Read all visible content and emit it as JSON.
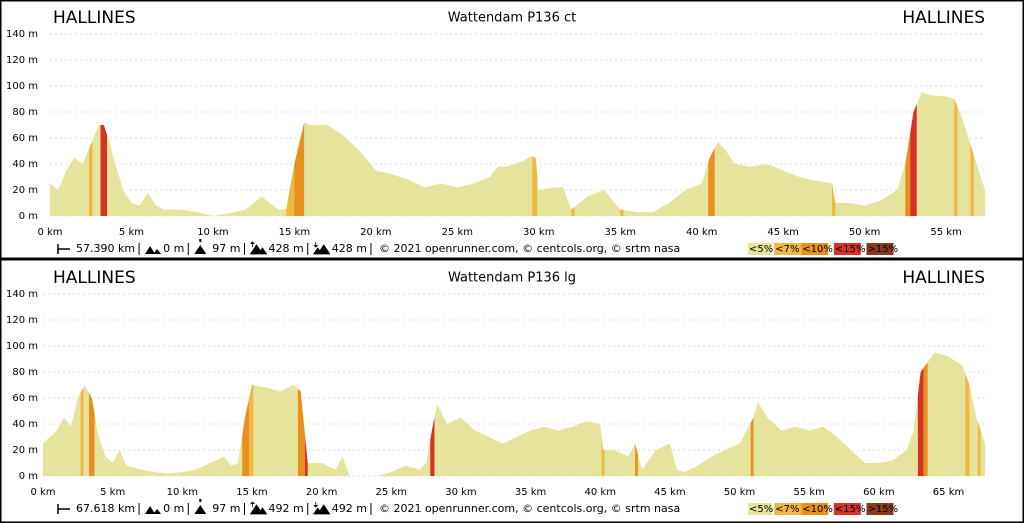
{
  "chart_data": [
    {
      "type": "area",
      "title": "Wattendam P136 ct",
      "start_label": "HALLINES",
      "end_label": "HALLINES",
      "color": "#e6e49c",
      "grid": true,
      "x": [
        0,
        0.5,
        1,
        1.5,
        2,
        2.5,
        3,
        3.3,
        3.7,
        4,
        4.5,
        5,
        5.5,
        6,
        6.5,
        7,
        8,
        9,
        10,
        11,
        12,
        13,
        14,
        14.5,
        15,
        15.6,
        16,
        17,
        18,
        19,
        20,
        21,
        22,
        23,
        24,
        25,
        26,
        27,
        27.5,
        28,
        29,
        29.5,
        29.8,
        30,
        31,
        31.5,
        32,
        33,
        34,
        35,
        36,
        37,
        38,
        39,
        40,
        40.5,
        41,
        41.5,
        42,
        43,
        44,
        45,
        46,
        47,
        48,
        48.2,
        49,
        50,
        51,
        52,
        52.5,
        53,
        53.5,
        54,
        55,
        55.5,
        56,
        57,
        57.39
      ],
      "values": [
        25,
        20,
        35,
        45,
        40,
        55,
        70,
        70,
        55,
        40,
        20,
        10,
        8,
        18,
        8,
        5,
        5,
        3,
        0,
        2,
        5,
        15,
        5,
        5,
        40,
        72,
        70,
        70,
        62,
        50,
        35,
        32,
        28,
        22,
        25,
        22,
        25,
        30,
        38,
        38,
        42,
        46,
        45,
        20,
        22,
        22,
        5,
        15,
        20,
        5,
        3,
        3,
        10,
        20,
        25,
        45,
        57,
        50,
        40,
        38,
        40,
        35,
        30,
        27,
        25,
        10,
        10,
        8,
        12,
        20,
        40,
        80,
        95,
        93,
        92,
        90,
        75,
        35,
        20
      ],
      "xlim": [
        0,
        57.39
      ],
      "ylim": [
        0,
        140
      ],
      "xticks": [
        {
          "value": 0,
          "label": "0 km"
        },
        {
          "value": 5,
          "label": "5 km"
        },
        {
          "value": 10,
          "label": "10 km"
        },
        {
          "value": 15,
          "label": "15 km"
        },
        {
          "value": 20,
          "label": "20 km"
        },
        {
          "value": 25,
          "label": "25 km"
        },
        {
          "value": 30,
          "label": "30 km"
        },
        {
          "value": 35,
          "label": "35 km"
        },
        {
          "value": 40,
          "label": "40 km"
        },
        {
          "value": 45,
          "label": "45 km"
        },
        {
          "value": 50,
          "label": "50 km"
        },
        {
          "value": 55,
          "label": "55 km"
        }
      ],
      "yticks": [
        {
          "value": 0,
          "label": "0 m"
        },
        {
          "value": 20,
          "label": "20 m"
        },
        {
          "value": 40,
          "label": "40 m"
        },
        {
          "value": 60,
          "label": "60 m"
        },
        {
          "value": 80,
          "label": "80 m"
        },
        {
          "value": 100,
          "label": "100 m"
        },
        {
          "value": 120,
          "label": "120 m"
        },
        {
          "value": 140,
          "label": "140 m"
        }
      ],
      "legend": [
        {
          "label": "<5%",
          "color": "#e6e49c"
        },
        {
          "label": "<7%",
          "color": "#f0b840"
        },
        {
          "label": "<10%",
          "color": "#e8901e"
        },
        {
          "label": "<15%",
          "color": "#d63226"
        },
        {
          "label": ">15%",
          "color": "#8a3a1c"
        }
      ],
      "grade_segments": [
        {
          "x": [
            2.4,
            2.6
          ],
          "grade": "<7%"
        },
        {
          "x": [
            3.1,
            3.5
          ],
          "grade": "<15%"
        },
        {
          "x": [
            14.5,
            15.0
          ],
          "grade": "<7%"
        },
        {
          "x": [
            15.0,
            15.6
          ],
          "grade": "<10%"
        },
        {
          "x": [
            29.6,
            29.9
          ],
          "grade": "<7%"
        },
        {
          "x": [
            32.0,
            32.2
          ],
          "grade": "<7%"
        },
        {
          "x": [
            35.0,
            35.2
          ],
          "grade": "<7%"
        },
        {
          "x": [
            40.4,
            40.8
          ],
          "grade": "<10%"
        },
        {
          "x": [
            48.0,
            48.2
          ],
          "grade": "<7%"
        },
        {
          "x": [
            52.5,
            52.8
          ],
          "grade": "<10%"
        },
        {
          "x": [
            52.8,
            53.2
          ],
          "grade": "<15%"
        },
        {
          "x": [
            55.5,
            55.7
          ],
          "grade": "<7%"
        },
        {
          "x": [
            56.5,
            56.7
          ],
          "grade": "<7%"
        }
      ],
      "stats": {
        "distance": "57.390 km",
        "min_elevation": "0 m",
        "max_elevation": "97 m",
        "ascent": "428 m",
        "descent": "428 m",
        "credits": "© 2021 openrunner.com, © centcols.org, © srtm nasa"
      }
    },
    {
      "type": "area",
      "title": "Wattendam P136 lg",
      "start_label": "HALLINES",
      "end_label": "HALLINES",
      "color": "#e6e49c",
      "grid": true,
      "x": [
        0,
        1,
        1.5,
        2,
        2.5,
        3,
        3.5,
        4,
        4.5,
        5,
        5.5,
        6,
        7,
        8,
        9,
        10,
        11,
        12,
        13,
        13.5,
        14,
        14.5,
        15,
        16,
        17,
        18,
        18.5,
        19,
        20,
        21,
        21.5,
        22,
        23,
        24,
        25,
        26,
        27,
        27.5,
        28,
        28.3,
        29,
        30,
        31,
        32,
        33,
        34,
        35,
        36,
        37,
        38,
        39,
        40,
        40.2,
        41,
        42,
        42.5,
        43,
        44,
        45,
        45.5,
        46,
        47,
        48,
        49,
        50,
        51,
        51.3,
        52,
        53,
        54,
        55,
        56,
        57,
        58,
        59,
        60,
        61,
        62,
        62.5,
        63,
        64,
        65,
        66,
        66.5,
        67,
        67.618
      ],
      "values": [
        25,
        35,
        45,
        38,
        60,
        70,
        60,
        30,
        15,
        10,
        20,
        8,
        5,
        3,
        2,
        3,
        5,
        10,
        15,
        8,
        10,
        45,
        70,
        68,
        65,
        70,
        65,
        10,
        10,
        5,
        15,
        0,
        0,
        0,
        3,
        8,
        5,
        10,
        40,
        55,
        40,
        45,
        35,
        30,
        25,
        30,
        35,
        38,
        35,
        38,
        42,
        40,
        20,
        20,
        15,
        25,
        5,
        20,
        25,
        5,
        3,
        8,
        15,
        20,
        25,
        45,
        57,
        45,
        35,
        38,
        35,
        38,
        30,
        20,
        10,
        10,
        12,
        20,
        35,
        80,
        95,
        92,
        85,
        70,
        45,
        25
      ],
      "xlim": [
        0,
        67.618
      ],
      "ylim": [
        0,
        140
      ],
      "xticks": [
        {
          "value": 0,
          "label": "0 km"
        },
        {
          "value": 5,
          "label": "5 km"
        },
        {
          "value": 10,
          "label": "10 km"
        },
        {
          "value": 15,
          "label": "15 km"
        },
        {
          "value": 20,
          "label": "20 km"
        },
        {
          "value": 25,
          "label": "25 km"
        },
        {
          "value": 30,
          "label": "30 km"
        },
        {
          "value": 35,
          "label": "35 km"
        },
        {
          "value": 40,
          "label": "40 km"
        },
        {
          "value": 45,
          "label": "45 km"
        },
        {
          "value": 50,
          "label": "50 km"
        },
        {
          "value": 55,
          "label": "55 km"
        },
        {
          "value": 60,
          "label": "60 km"
        },
        {
          "value": 65,
          "label": "65 km"
        }
      ],
      "yticks": [
        {
          "value": 0,
          "label": "0 m"
        },
        {
          "value": 20,
          "label": "20 m"
        },
        {
          "value": 40,
          "label": "40 m"
        },
        {
          "value": 60,
          "label": "60 m"
        },
        {
          "value": 80,
          "label": "80 m"
        },
        {
          "value": 100,
          "label": "100 m"
        },
        {
          "value": 120,
          "label": "120 m"
        },
        {
          "value": 140,
          "label": "140 m"
        }
      ],
      "legend": [
        {
          "label": "<5%",
          "color": "#e6e49c"
        },
        {
          "label": "<7%",
          "color": "#f0b840"
        },
        {
          "label": "<10%",
          "color": "#e8901e"
        },
        {
          "label": "<15%",
          "color": "#d63226"
        },
        {
          "label": ">15%",
          "color": "#8a3a1c"
        }
      ],
      "grade_segments": [
        {
          "x": [
            2.7,
            2.9
          ],
          "grade": "<7%"
        },
        {
          "x": [
            3.3,
            3.7
          ],
          "grade": "<10%"
        },
        {
          "x": [
            14.3,
            14.8
          ],
          "grade": "<10%"
        },
        {
          "x": [
            14.8,
            15.1
          ],
          "grade": "<7%"
        },
        {
          "x": [
            18.3,
            18.8
          ],
          "grade": "<10%"
        },
        {
          "x": [
            18.8,
            19.0
          ],
          "grade": "<15%"
        },
        {
          "x": [
            27.8,
            28.1
          ],
          "grade": "<15%"
        },
        {
          "x": [
            40.1,
            40.3
          ],
          "grade": "<7%"
        },
        {
          "x": [
            42.5,
            42.7
          ],
          "grade": "<10%"
        },
        {
          "x": [
            50.8,
            51.0
          ],
          "grade": "<10%"
        },
        {
          "x": [
            62.8,
            63.2
          ],
          "grade": "<15%"
        },
        {
          "x": [
            63.2,
            63.5
          ],
          "grade": "<10%"
        },
        {
          "x": [
            66.2,
            66.5
          ],
          "grade": "<7%"
        },
        {
          "x": [
            67.1,
            67.3
          ],
          "grade": "<7%"
        }
      ],
      "stats": {
        "distance": "67.618 km",
        "min_elevation": "0 m",
        "max_elevation": "97 m",
        "ascent": "492 m",
        "descent": "492 m",
        "credits": "© 2021 openrunner.com, © centcols.org, © srtm nasa"
      }
    }
  ]
}
